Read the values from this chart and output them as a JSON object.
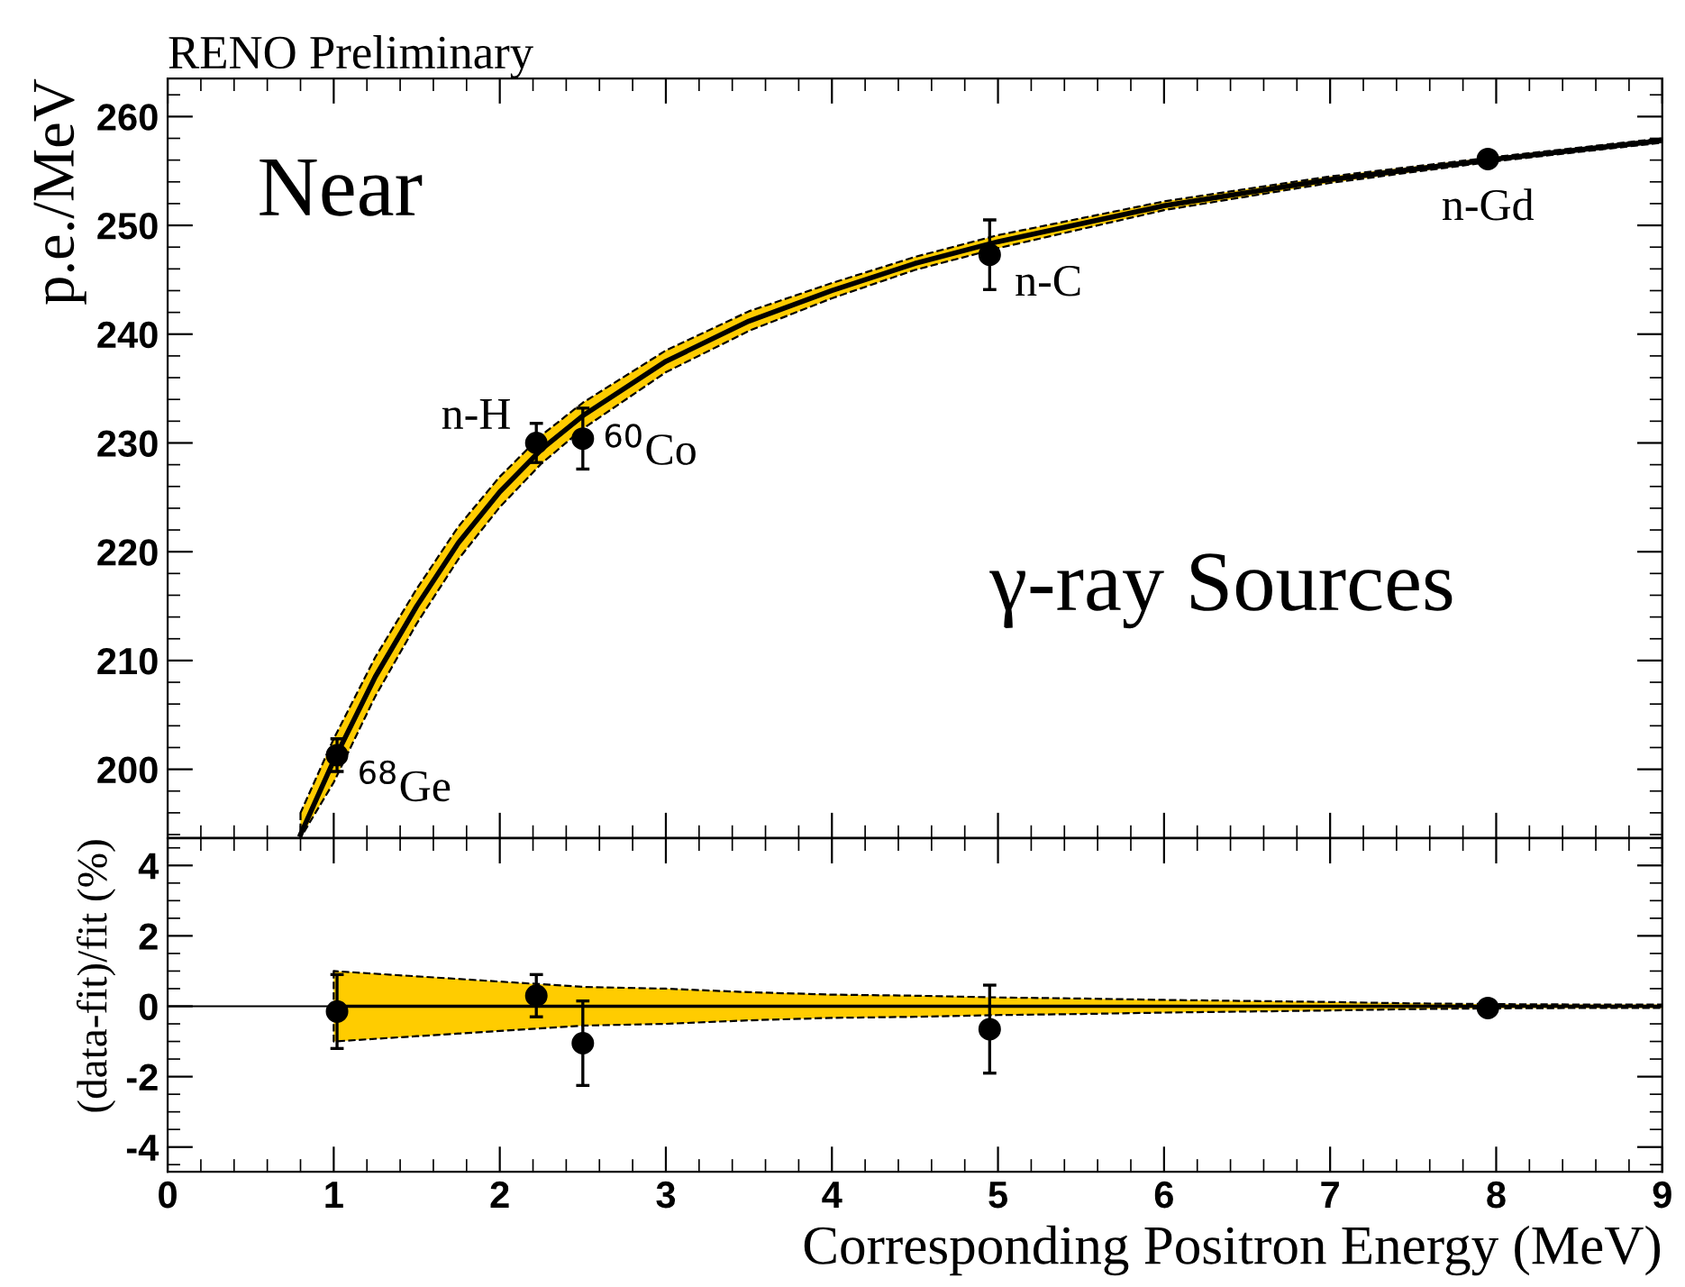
{
  "chart_data": [
    {
      "type": "scatter",
      "title": "RENO Preliminary",
      "ylabel": "p.e./MeV",
      "xlim": [
        0,
        9
      ],
      "ylim": [
        193.7,
        263.5
      ],
      "xticks": [
        0,
        1,
        2,
        3,
        4,
        5,
        6,
        7,
        8,
        9
      ],
      "yticks": [
        200,
        210,
        220,
        230,
        240,
        250,
        260
      ],
      "tick_labels": "y",
      "series": [
        {
          "type": "line",
          "color": "#000000",
          "x": [
            0.8,
            1.0,
            1.25,
            1.5,
            1.75,
            2.0,
            2.25,
            2.5,
            3.0,
            3.5,
            4.0,
            4.5,
            5.0,
            6.0,
            7.0,
            8.0,
            9.0
          ],
          "values": [
            194.0,
            200.8,
            208.5,
            215.0,
            220.8,
            225.5,
            229.4,
            232.5,
            237.5,
            241.2,
            244.0,
            246.5,
            248.5,
            251.8,
            254.2,
            256.1,
            257.8
          ],
          "lower": [
            193.7,
            198.8,
            206.7,
            213.4,
            219.3,
            224.1,
            228.1,
            231.3,
            236.5,
            240.3,
            243.3,
            245.9,
            247.9,
            251.4,
            253.9,
            255.9,
            257.6
          ],
          "upper": [
            196.0,
            202.8,
            210.3,
            216.6,
            222.3,
            226.9,
            230.7,
            233.7,
            238.5,
            242.1,
            244.7,
            247.1,
            249.1,
            252.2,
            254.5,
            256.3,
            258.0
          ]
        },
        {
          "color": "#000000",
          "marker": "circle",
          "x": [
            1.02,
            2.22,
            2.5,
            4.95,
            7.95
          ],
          "values": [
            201.3,
            230.0,
            230.4,
            247.3,
            256.1
          ],
          "errors": [
            1.5,
            1.8,
            2.8,
            3.2,
            0.3
          ]
        }
      ],
      "annotations": [
        {
          "text": "$^{68}$Ge",
          "x": 1.02,
          "y": 201.3
        },
        {
          "text": "n-H",
          "x": 2.22,
          "y": 230.0
        },
        {
          "text": "$^{60}$Co",
          "x": 2.5,
          "y": 230.4
        },
        {
          "text": "n-C",
          "x": 4.95,
          "y": 247.3
        },
        {
          "text": "n-Gd",
          "x": 7.95,
          "y": 256.1
        },
        "Near",
        "γ-ray Sources"
      ]
    },
    {
      "type": "scatter",
      "xlabel": "Corresponding Positron Energy (MeV)",
      "ylabel": "(data-fit)/fit (%)",
      "xlim": [
        0,
        9
      ],
      "ylim": [
        -4.7,
        4.77
      ],
      "xticks": [
        0,
        1,
        2,
        3,
        4,
        5,
        6,
        7,
        8,
        9
      ],
      "yticks": [
        -4,
        -2,
        0,
        2,
        4
      ],
      "ref_lines": [
        {
          "axis": "y",
          "value": 0,
          "color": "#000000"
        }
      ],
      "series": [
        {
          "type": "line",
          "color": "#000000",
          "x": [
            1.0,
            1.5,
            2.0,
            2.5,
            3.0,
            3.5,
            4.0,
            4.5,
            5.0,
            5.5,
            6.0,
            6.5,
            7.0,
            7.5,
            8.0,
            8.5,
            9.0
          ],
          "values": [
            0,
            0,
            0,
            0,
            0,
            0,
            0,
            0,
            0,
            0,
            0,
            0,
            0,
            0,
            0,
            0,
            0
          ],
          "lower": [
            -1.0,
            -0.85,
            -0.7,
            -0.55,
            -0.5,
            -0.4,
            -0.33,
            -0.3,
            -0.25,
            -0.22,
            -0.18,
            -0.15,
            -0.12,
            -0.08,
            -0.06,
            -0.05,
            -0.05
          ],
          "upper": [
            1.0,
            0.85,
            0.7,
            0.55,
            0.5,
            0.4,
            0.33,
            0.3,
            0.25,
            0.22,
            0.18,
            0.15,
            0.12,
            0.08,
            0.06,
            0.05,
            0.05
          ]
        },
        {
          "color": "#000000",
          "marker": "circle",
          "x": [
            1.02,
            2.22,
            2.5,
            4.95,
            7.95
          ],
          "values": [
            -0.15,
            0.3,
            -1.05,
            -0.65,
            -0.05
          ],
          "errors": [
            1.05,
            0.6,
            1.2,
            1.25,
            0.1
          ]
        }
      ]
    }
  ]
}
